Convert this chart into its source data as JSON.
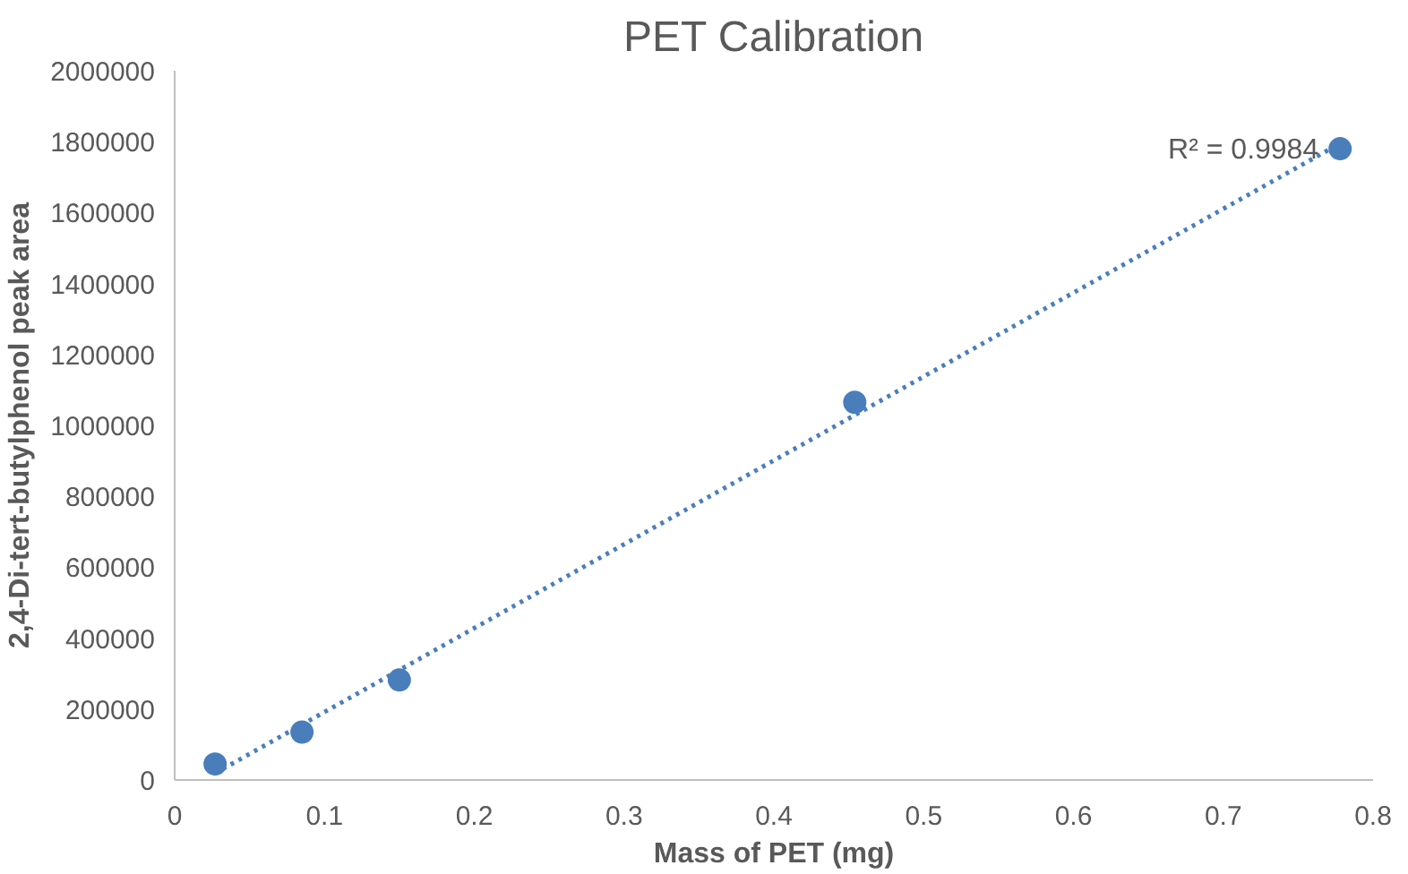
{
  "chart_data": {
    "type": "scatter",
    "title": "PET Calibration",
    "xlabel": "Mass of PET (mg)",
    "ylabel": "2,4-Di-tert-butylphenol peak area",
    "x": [
      0.027,
      0.085,
      0.15,
      0.454,
      0.778
    ],
    "series": [
      {
        "color": "#4a7ebb",
        "values": [
          45000,
          135000,
          282000,
          1065000,
          1780000
        ],
        "marker": "circle"
      },
      {
        "type": "line",
        "color": "#4a7ebb",
        "x": [
          0.027,
          0.778
        ],
        "values": [
          19000,
          1795000
        ],
        "line_style": "dotted"
      }
    ],
    "annotations": [
      {
        "text": "R² = 0.9984",
        "x": 0.778,
        "y": 1780000
      }
    ],
    "xlim": [
      0,
      0.8
    ],
    "xticks": [
      0,
      0.1,
      0.2,
      0.3,
      0.4,
      0.5,
      0.6,
      0.7,
      0.8
    ],
    "ylim": [
      0,
      2000000
    ],
    "yticks": [
      0,
      200000,
      400000,
      600000,
      800000,
      1000000,
      1200000,
      1400000,
      1600000,
      1800000,
      2000000
    ],
    "grid": false
  }
}
